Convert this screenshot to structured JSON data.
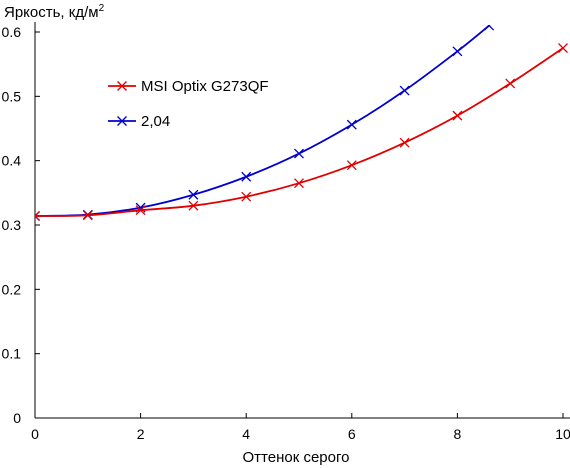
{
  "chart_data": {
    "type": "line",
    "ylabel": "Яркость, кд/м",
    "ylabel_superscript": "2",
    "xlabel": "Оттенок серого",
    "xlim": [
      0,
      10
    ],
    "ylim": [
      0,
      0.6
    ],
    "x_ticks": [
      "0",
      "2",
      "4",
      "6",
      "8",
      "10"
    ],
    "y_ticks": [
      "0",
      "0.1",
      "0.2",
      "0.3",
      "0.4",
      "0.5",
      "0.6"
    ],
    "grid": false,
    "legend_position": "top-left",
    "series": [
      {
        "name": "MSI Optix G273QF",
        "color": "#e00000",
        "x": [
          0,
          1,
          2,
          3,
          4,
          5,
          6,
          7,
          8,
          9,
          10
        ],
        "values": [
          0.314,
          0.315,
          0.323,
          0.33,
          0.344,
          0.365,
          0.393,
          0.428,
          0.47,
          0.52,
          0.575
        ]
      },
      {
        "name": "2,04",
        "color": "#0000d0",
        "x": [
          0,
          1,
          2,
          3,
          4,
          5,
          6,
          7,
          8,
          8.6
        ],
        "values": [
          0.314,
          0.316,
          0.327,
          0.347,
          0.375,
          0.411,
          0.456,
          0.509,
          0.57,
          0.61
        ]
      }
    ]
  }
}
